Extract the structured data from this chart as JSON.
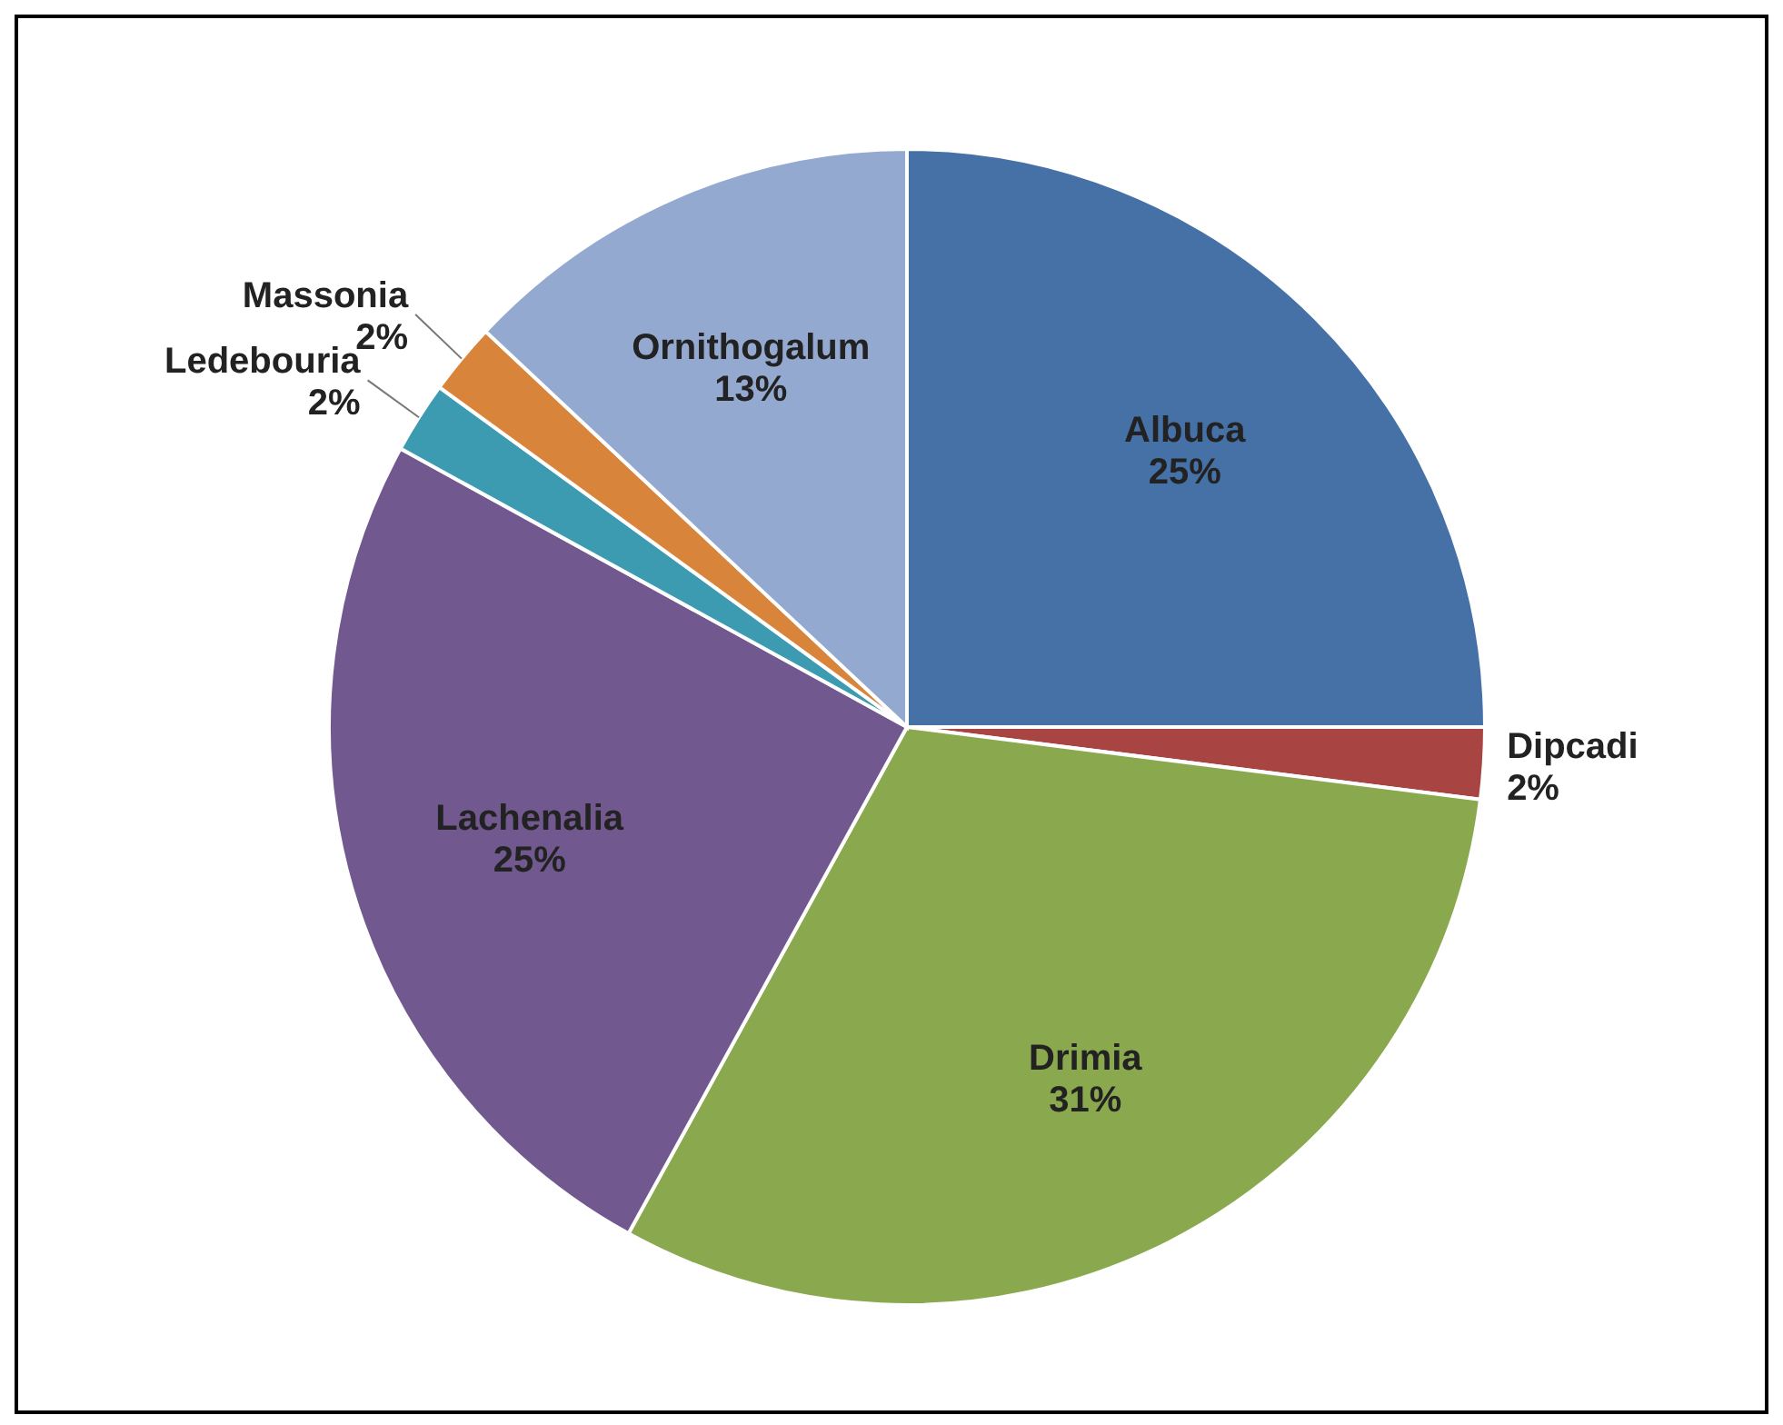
{
  "chart_data": {
    "type": "pie",
    "categories": [
      "Albuca",
      "Dipcadi",
      "Drimia",
      "Lachenalia",
      "Ledebouria",
      "Massonia",
      "Ornithogalum"
    ],
    "values": [
      25,
      2,
      31,
      25,
      2,
      2,
      13
    ],
    "value_labels": [
      "25%",
      "2%",
      "31%",
      "25%",
      "2%",
      "2%",
      "13%"
    ],
    "colors": [
      "#4571a7",
      "#a84442",
      "#8aa84e",
      "#71588f",
      "#3c9bb0",
      "#d9843b",
      "#93a9cf"
    ]
  }
}
